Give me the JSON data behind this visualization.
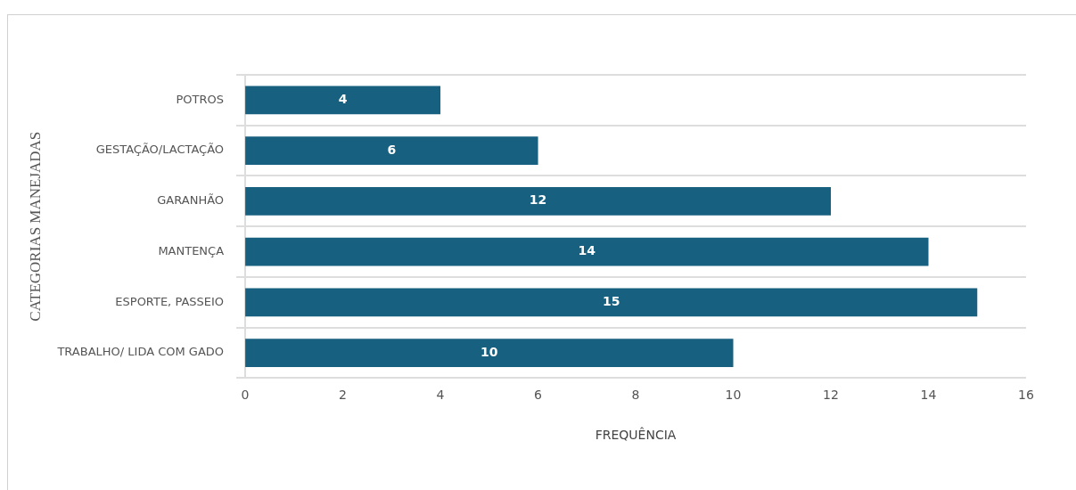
{
  "chart_data": {
    "type": "bar",
    "orientation": "horizontal",
    "categories": [
      "POTROS",
      "GESTAÇÃO/LACTAÇÃO",
      "GARANHÃO",
      "MANTENÇA",
      "ESPORTE, PASSEIO",
      "TRABALHO/ LIDA COM GADO"
    ],
    "values": [
      4,
      6,
      12,
      14,
      15,
      10
    ],
    "color": "#17607f",
    "data_labels": true,
    "xlim": [
      0,
      16
    ],
    "xticks": [
      0,
      2,
      4,
      6,
      8,
      10,
      12,
      14,
      16
    ],
    "xlabel": "FREQUÊNCIA",
    "ylabel": "CATEGORIAS MANEJADAS",
    "grid": "y",
    "legend": false
  }
}
